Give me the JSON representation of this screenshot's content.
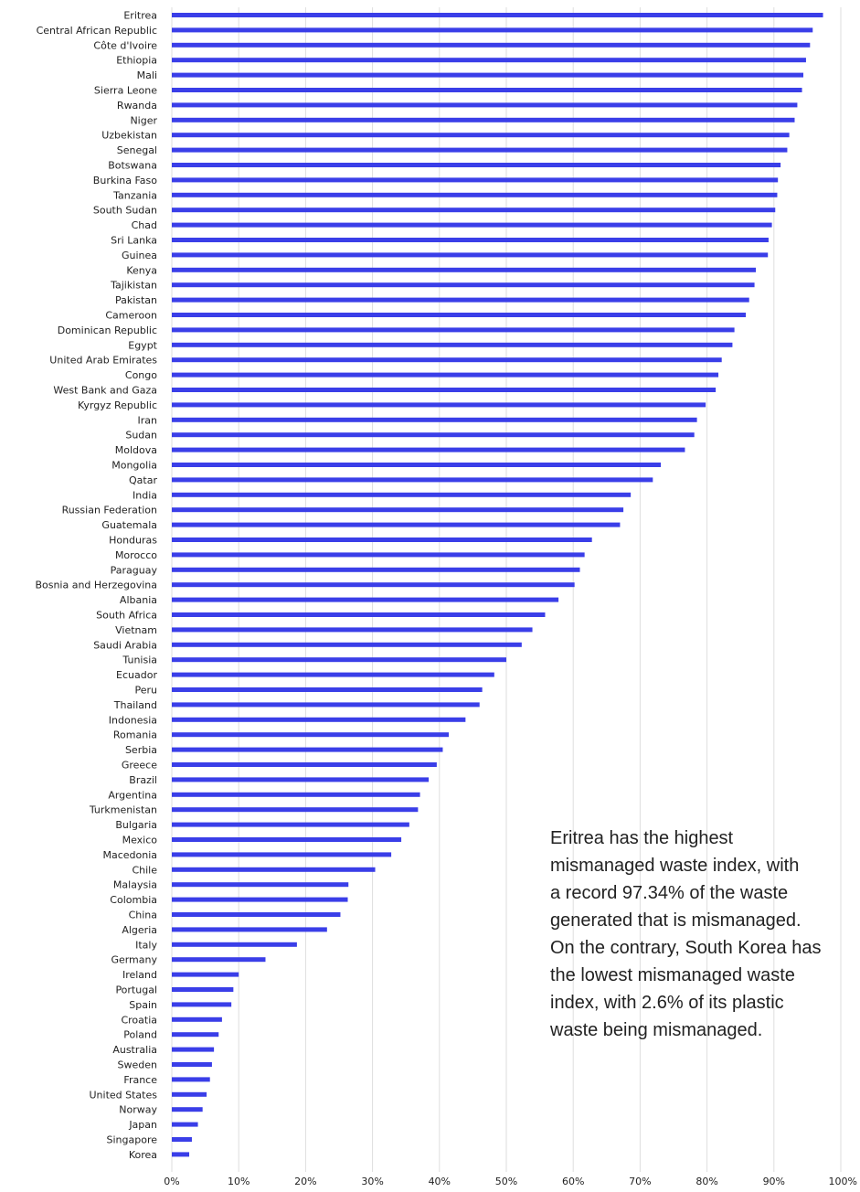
{
  "chart_data": {
    "type": "bar",
    "orientation": "horizontal",
    "bar_color": "#3a3ee8",
    "xlim": [
      0,
      100
    ],
    "x_ticks": [
      "0%",
      "10%",
      "20%",
      "30%",
      "40%",
      "50%",
      "60%",
      "70%",
      "80%",
      "90%",
      "100%"
    ],
    "grid": true,
    "categories": [
      "Eritrea",
      "Central African Republic",
      "Côte d'Ivoire",
      "Ethiopia",
      "Mali",
      "Sierra Leone",
      "Rwanda",
      "Niger",
      "Uzbekistan",
      "Senegal",
      "Botswana",
      "Burkina Faso",
      "Tanzania",
      "South Sudan",
      "Chad",
      "Sri Lanka",
      "Guinea",
      "Kenya",
      "Tajikistan",
      "Pakistan",
      "Cameroon",
      "Dominican Republic",
      "Egypt",
      "United Arab Emirates",
      "Congo",
      "West Bank and Gaza",
      "Kyrgyz Republic",
      "Iran",
      "Sudan",
      "Moldova",
      "Mongolia",
      "Qatar",
      "India",
      "Russian Federation",
      "Guatemala",
      "Honduras",
      "Morocco",
      "Paraguay",
      "Bosnia and Herzegovina",
      "Albania",
      "South Africa",
      "Vietnam",
      "Saudi Arabia",
      "Tunisia",
      "Ecuador",
      "Peru",
      "Thailand",
      "Indonesia",
      "Romania",
      "Serbia",
      "Greece",
      "Brazil",
      "Argentina",
      "Turkmenistan",
      "Bulgaria",
      "Mexico",
      "Macedonia",
      "Chile",
      "Malaysia",
      "Colombia",
      "China",
      "Algeria",
      "Italy",
      "Germany",
      "Ireland",
      "Portugal",
      "Spain",
      "Croatia",
      "Poland",
      "Australia",
      "Sweden",
      "France",
      "United States",
      "Norway",
      "Japan",
      "Singapore",
      "Korea"
    ],
    "values": [
      97.34,
      95.8,
      95.4,
      94.8,
      94.4,
      94.2,
      93.5,
      93.1,
      92.3,
      92.0,
      91.0,
      90.6,
      90.5,
      90.2,
      89.7,
      89.2,
      89.1,
      87.3,
      87.1,
      86.3,
      85.8,
      84.1,
      83.8,
      82.2,
      81.7,
      81.3,
      79.8,
      78.5,
      78.1,
      76.7,
      73.1,
      71.9,
      68.6,
      67.5,
      67.0,
      62.8,
      61.7,
      61.0,
      60.2,
      57.8,
      55.8,
      53.9,
      52.3,
      50.0,
      48.2,
      46.4,
      46.0,
      43.9,
      41.4,
      40.5,
      39.6,
      38.4,
      37.1,
      36.8,
      35.5,
      34.3,
      32.8,
      30.4,
      26.4,
      26.3,
      25.2,
      23.2,
      18.7,
      14.0,
      10.0,
      9.2,
      8.9,
      7.5,
      7.0,
      6.3,
      6.0,
      5.7,
      5.2,
      4.6,
      3.9,
      3.0,
      2.6
    ]
  },
  "annotation": {
    "lines": [
      "Eritrea has the highest",
      "mismanaged waste index, with",
      "a record 97.34% of the waste",
      "generated that is mismanaged.",
      "On the contrary, South Korea has",
      "the lowest mismanaged waste",
      "index, with 2.6% of its plastic",
      "waste being mismanaged."
    ]
  }
}
